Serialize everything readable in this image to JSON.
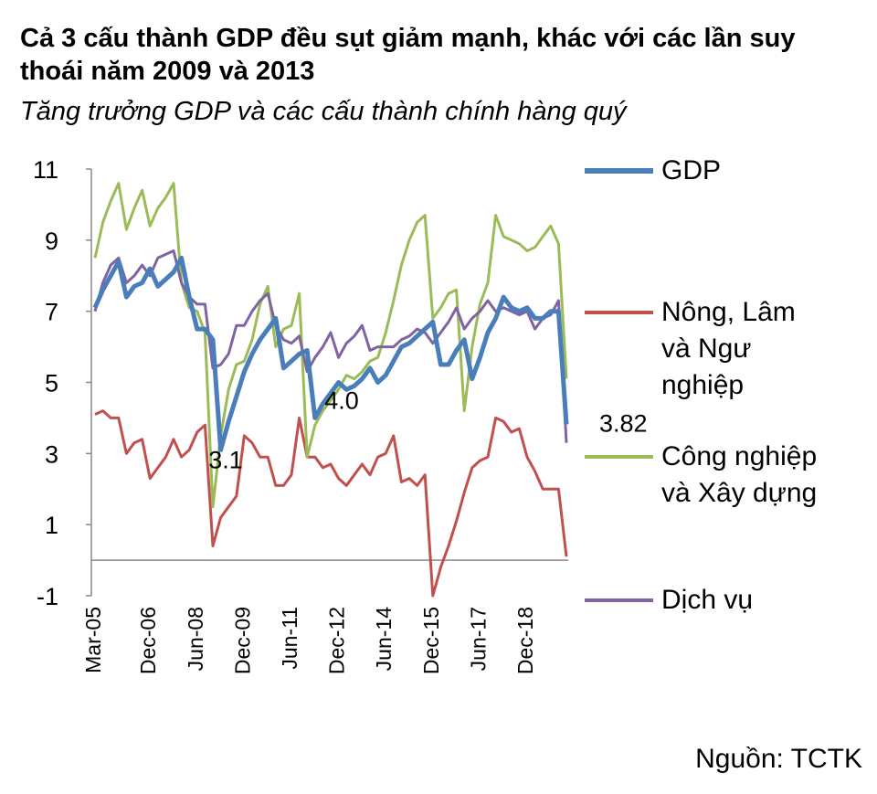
{
  "chart_data": {
    "type": "line",
    "title": "Cả 3 cấu thành GDP đều sụt giảm mạnh, khác với các lần suy thoái năm 2009 và 2013",
    "subtitle": "Tăng trưởng GDP và các cấu thành chính hàng quý",
    "source": "Nguồn: TCTK",
    "categories": [
      "Mar-05",
      null,
      null,
      null,
      null,
      null,
      null,
      "Dec-06",
      null,
      null,
      null,
      null,
      null,
      "Jun-08",
      null,
      null,
      null,
      null,
      null,
      "Dec-09",
      null,
      null,
      null,
      null,
      null,
      "Jun-11",
      null,
      null,
      null,
      null,
      null,
      "Dec-12",
      null,
      null,
      null,
      null,
      null,
      "Jun-14",
      null,
      null,
      null,
      null,
      null,
      "Dec-15",
      null,
      null,
      null,
      null,
      null,
      "Jun-17",
      null,
      null,
      null,
      null,
      null,
      "Dec-18",
      null,
      null,
      null,
      null,
      null
    ],
    "series": [
      {
        "name": "GDP",
        "color": "#4a7ebb",
        "values": [
          7.1,
          7.6,
          8.0,
          8.4,
          7.4,
          7.7,
          7.8,
          8.2,
          7.7,
          7.9,
          8.1,
          8.5,
          7.4,
          6.5,
          6.5,
          6.2,
          3.1,
          3.9,
          4.6,
          5.3,
          5.8,
          6.2,
          6.5,
          6.8,
          5.4,
          5.6,
          5.8,
          5.9,
          4.0,
          4.4,
          4.7,
          5.0,
          4.8,
          4.9,
          5.1,
          5.4,
          5.0,
          5.2,
          5.6,
          6.0,
          6.1,
          6.3,
          6.5,
          6.7,
          5.5,
          5.5,
          5.9,
          6.2,
          5.1,
          5.7,
          6.4,
          6.8,
          7.4,
          7.1,
          7.0,
          7.1,
          6.8,
          6.8,
          7.0,
          7.0,
          3.82
        ]
      },
      {
        "name": "Nông, Lâm và Ngư nghiệp",
        "color": "#c0504d",
        "values": [
          4.1,
          4.2,
          4.0,
          4.0,
          3.0,
          3.3,
          3.4,
          2.3,
          2.6,
          2.9,
          3.4,
          2.9,
          3.1,
          3.6,
          3.8,
          0.4,
          1.2,
          1.5,
          1.8,
          3.5,
          3.3,
          2.9,
          2.9,
          2.1,
          2.1,
          2.4,
          4.0,
          2.9,
          2.9,
          2.6,
          2.7,
          2.3,
          2.1,
          2.4,
          2.7,
          2.4,
          2.9,
          3.0,
          3.5,
          2.2,
          2.3,
          2.1,
          2.4,
          -1.0,
          -0.2,
          0.4,
          1.1,
          1.9,
          2.6,
          2.8,
          2.9,
          4.0,
          3.9,
          3.6,
          3.7,
          2.9,
          2.5,
          2.0,
          2.0,
          2.0,
          0.1
        ]
      },
      {
        "name": "Công nghiệp và Xây dựng",
        "color": "#9bbb59",
        "values": [
          8.5,
          9.5,
          10.1,
          10.6,
          9.3,
          9.9,
          10.4,
          9.4,
          9.9,
          10.2,
          10.6,
          7.8,
          7.1,
          7.0,
          6.4,
          1.5,
          3.5,
          4.8,
          5.5,
          5.6,
          6.2,
          7.2,
          7.7,
          6.0,
          6.5,
          6.6,
          7.5,
          2.9,
          3.8,
          4.2,
          4.5,
          4.8,
          5.2,
          5.1,
          5.3,
          5.6,
          5.7,
          6.4,
          7.3,
          8.3,
          9.0,
          9.5,
          9.7,
          6.8,
          7.1,
          7.5,
          7.6,
          4.2,
          6.0,
          7.2,
          7.8,
          9.7,
          9.1,
          9.0,
          8.9,
          8.7,
          8.8,
          9.1,
          9.4,
          8.9,
          5.1
        ]
      },
      {
        "name": "Dịch vụ",
        "color": "#8064a2",
        "values": [
          7.0,
          7.8,
          8.3,
          8.5,
          7.8,
          8.0,
          8.3,
          8.0,
          8.5,
          8.6,
          8.7,
          7.8,
          7.4,
          7.2,
          7.2,
          5.4,
          5.5,
          5.8,
          6.6,
          6.6,
          7.0,
          7.3,
          7.5,
          6.6,
          6.2,
          6.1,
          6.3,
          5.3,
          5.7,
          6.0,
          6.4,
          5.7,
          6.1,
          6.3,
          6.6,
          5.9,
          6.0,
          6.0,
          6.0,
          6.2,
          6.3,
          6.5,
          6.4,
          6.1,
          6.4,
          6.7,
          7.1,
          6.5,
          6.8,
          7.0,
          7.3,
          7.0,
          7.1,
          7.0,
          6.9,
          7.0,
          6.5,
          6.8,
          6.9,
          7.3,
          3.3
        ]
      }
    ],
    "annotations": [
      {
        "text": "3.1",
        "x": 17,
        "y": 3.1
      },
      {
        "text": "4.0",
        "x": 32,
        "y": 4.0
      },
      {
        "text": "3.82",
        "x": 60,
        "y": 3.82
      }
    ],
    "ylim": [
      -1,
      11
    ],
    "yticks": [
      -1,
      1,
      3,
      5,
      7,
      9,
      11
    ]
  }
}
